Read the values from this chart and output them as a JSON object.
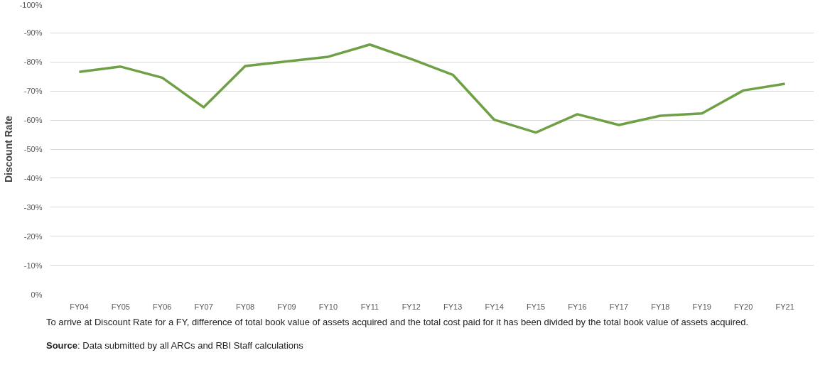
{
  "chart_data": {
    "type": "line",
    "ylabel": "Discount Rate",
    "categories": [
      "FY04",
      "FY05",
      "FY06",
      "FY07",
      "FY08",
      "FY09",
      "FY10",
      "FY11",
      "FY12",
      "FY13",
      "FY14",
      "FY15",
      "FY16",
      "FY17",
      "FY18",
      "FY19",
      "FY20",
      "FY21"
    ],
    "series": [
      {
        "color": "#6ea046",
        "values": [
          -76.6,
          -78.4,
          -74.6,
          -64.4,
          -78.6,
          -80.2,
          -81.8,
          -86.0,
          -81.0,
          -75.6,
          -60.1,
          -55.7,
          -62.0,
          -58.3,
          -61.5,
          -62.3,
          -70.2,
          -72.5
        ]
      }
    ],
    "ylim": [
      0,
      -100
    ],
    "yticks": [
      {
        "value": -100,
        "label": "-100%"
      },
      {
        "value": -90,
        "label": "-90%"
      },
      {
        "value": -80,
        "label": "-80%"
      },
      {
        "value": -70,
        "label": "-70%"
      },
      {
        "value": -60,
        "label": "-60%"
      },
      {
        "value": -50,
        "label": "-50%"
      },
      {
        "value": -40,
        "label": "-40%"
      },
      {
        "value": -30,
        "label": "-30%"
      },
      {
        "value": -20,
        "label": "-20%"
      },
      {
        "value": -10,
        "label": "-10%"
      },
      {
        "value": 0,
        "label": "0%"
      }
    ],
    "grid": "y",
    "marker": "none",
    "line_style": "solid",
    "annotations": [
      "To arrive at Discount Rate for a FY, difference of total book value of assets acquired and the total cost paid for it  has been divided by the total book value of assets acquired.",
      "Source: Data submitted by all ARCs and RBI Staff calculations"
    ]
  }
}
